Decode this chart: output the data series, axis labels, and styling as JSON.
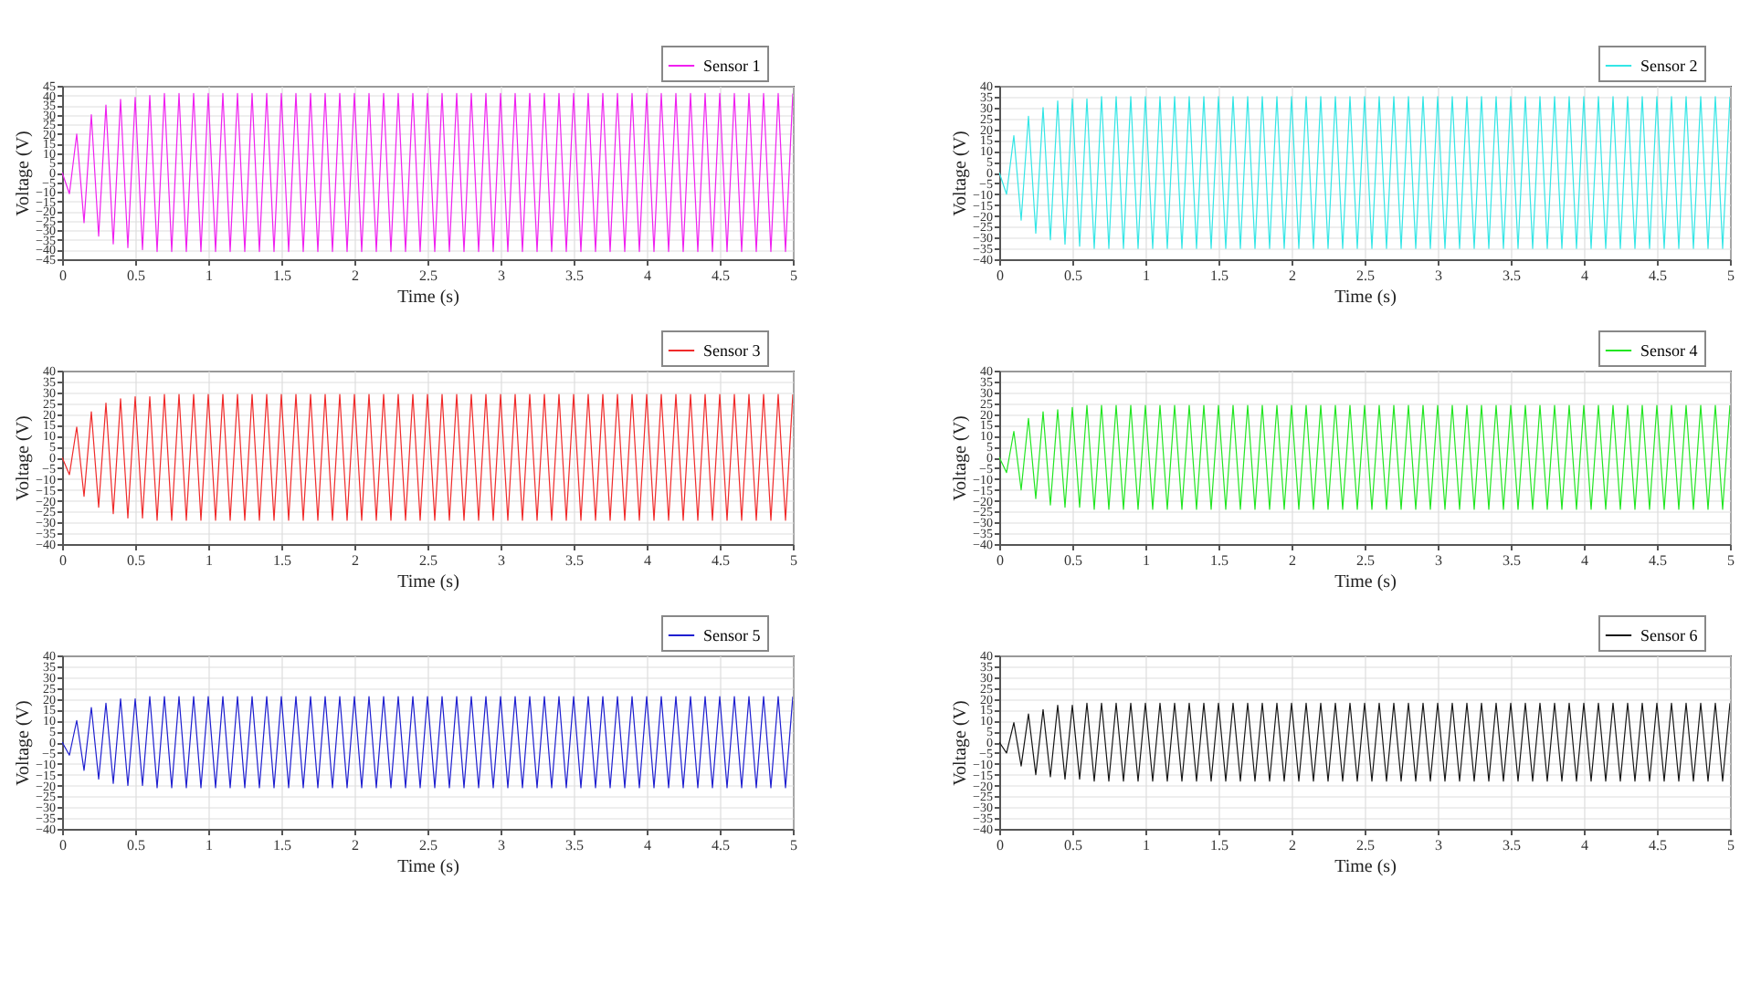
{
  "chart_data": [
    {
      "type": "line",
      "xlabel": "Time (s)",
      "ylabel": "Voltage (V)",
      "xlim": [
        0,
        5
      ],
      "xticks": [
        0,
        0.5,
        1,
        1.5,
        2,
        2.5,
        3,
        3.5,
        4,
        4.5,
        5
      ],
      "ylim": [
        -45,
        45
      ],
      "yticks": [
        -45,
        -40,
        -35,
        -30,
        -25,
        -20,
        -15,
        -10,
        -5,
        0,
        5,
        10,
        15,
        20,
        25,
        30,
        35,
        40,
        45
      ],
      "grid": true,
      "legend": "top right",
      "x": [
        0,
        0.05,
        0.1,
        0.15,
        0.2,
        0.25,
        0.3,
        0.35,
        0.4,
        0.45,
        0.5,
        0.55,
        0.6,
        0.65,
        0.7,
        0.75,
        0.8,
        0.85,
        0.9,
        0.95,
        1,
        1.05,
        1.1,
        1.15,
        1.2,
        1.25,
        1.3,
        1.35,
        1.4,
        1.45,
        1.5,
        1.55,
        1.6,
        1.65,
        1.7,
        1.75,
        1.8,
        1.85,
        1.9,
        1.95,
        2,
        2.05,
        2.1,
        2.15,
        2.2,
        2.25,
        2.3,
        2.35,
        2.4,
        2.45,
        2.5,
        2.55,
        2.6,
        2.65,
        2.7,
        2.75,
        2.8,
        2.85,
        2.9,
        2.95,
        3,
        3.05,
        3.1,
        3.15,
        3.2,
        3.25,
        3.3,
        3.35,
        3.4,
        3.45,
        3.5,
        3.55,
        3.6,
        3.65,
        3.7,
        3.75,
        3.8,
        3.85,
        3.9,
        3.95,
        4,
        4.05,
        4.1,
        4.15,
        4.2,
        4.25,
        4.3,
        4.35,
        4.4,
        4.45,
        4.5,
        4.55,
        4.6,
        4.65,
        4.7,
        4.75,
        4.8,
        4.85,
        4.9,
        4.95,
        5
      ],
      "series": [
        {
          "name": "Sensor 1",
          "color": "#f020f0",
          "values": [
            0,
            -11,
            20,
            -26,
            30,
            -33,
            35,
            -37,
            38,
            -39,
            39,
            -40,
            40,
            -41,
            41,
            -41,
            41,
            -41,
            41,
            -41,
            41,
            -41,
            41,
            -41,
            41,
            -41,
            41,
            -41,
            41,
            -41,
            41,
            -41,
            41,
            -41,
            41,
            -41,
            41,
            -41,
            41,
            -41,
            41,
            -41,
            41,
            -41,
            41,
            -41,
            41,
            -41,
            41,
            -41,
            41,
            -41,
            41,
            -41,
            41,
            -41,
            41,
            -41,
            41,
            -41,
            41,
            -41,
            41,
            -41,
            41,
            -41,
            41,
            -41,
            41,
            -41,
            41,
            -41,
            41,
            -41,
            41,
            -41,
            41,
            -41,
            41,
            -41,
            41,
            -41,
            41,
            -41,
            41,
            -41,
            41,
            -41,
            41,
            -41,
            41,
            -41,
            41,
            -41,
            41,
            -41,
            41,
            -41,
            41,
            -41,
            41
          ]
        }
      ]
    },
    {
      "type": "line",
      "xlabel": "Time (s)",
      "ylabel": "Voltage (V)",
      "xlim": [
        0,
        5
      ],
      "xticks": [
        0,
        0.5,
        1,
        1.5,
        2,
        2.5,
        3,
        3.5,
        4,
        4.5,
        5
      ],
      "ylim": [
        -40,
        40
      ],
      "yticks": [
        -40,
        -35,
        -30,
        -25,
        -20,
        -15,
        -10,
        -5,
        0,
        5,
        10,
        15,
        20,
        25,
        30,
        35,
        40
      ],
      "grid": true,
      "legend": "top right",
      "x": [
        0,
        0.05,
        0.1,
        0.15,
        0.2,
        0.25,
        0.3,
        0.35,
        0.4,
        0.45,
        0.5,
        0.55,
        0.6,
        0.65,
        0.7,
        0.75,
        0.8,
        0.85,
        0.9,
        0.95,
        1,
        1.05,
        1.1,
        1.15,
        1.2,
        1.25,
        1.3,
        1.35,
        1.4,
        1.45,
        1.5,
        1.55,
        1.6,
        1.65,
        1.7,
        1.75,
        1.8,
        1.85,
        1.9,
        1.95,
        2,
        2.05,
        2.1,
        2.15,
        2.2,
        2.25,
        2.3,
        2.35,
        2.4,
        2.45,
        2.5,
        2.55,
        2.6,
        2.65,
        2.7,
        2.75,
        2.8,
        2.85,
        2.9,
        2.95,
        3,
        3.05,
        3.1,
        3.15,
        3.2,
        3.25,
        3.3,
        3.35,
        3.4,
        3.45,
        3.5,
        3.55,
        3.6,
        3.65,
        3.7,
        3.75,
        3.8,
        3.85,
        3.9,
        3.95,
        4,
        4.05,
        4.1,
        4.15,
        4.2,
        4.25,
        4.3,
        4.35,
        4.4,
        4.45,
        4.5,
        4.55,
        4.6,
        4.65,
        4.7,
        4.75,
        4.8,
        4.85,
        4.9,
        4.95,
        5
      ],
      "series": [
        {
          "name": "Sensor 2",
          "color": "#33e6e6",
          "values": [
            0,
            -10,
            17,
            -22,
            26,
            -28,
            30,
            -31,
            33,
            -33,
            34,
            -34,
            34,
            -35,
            35,
            -35,
            35,
            -35,
            35,
            -35,
            35,
            -35,
            35,
            -35,
            35,
            -35,
            35,
            -35,
            35,
            -35,
            35,
            -35,
            35,
            -35,
            35,
            -35,
            35,
            -35,
            35,
            -35,
            35,
            -35,
            35,
            -35,
            35,
            -35,
            35,
            -35,
            35,
            -35,
            35,
            -35,
            35,
            -35,
            35,
            -35,
            35,
            -35,
            35,
            -35,
            35,
            -35,
            35,
            -35,
            35,
            -35,
            35,
            -35,
            35,
            -35,
            35,
            -35,
            35,
            -35,
            35,
            -35,
            35,
            -35,
            35,
            -35,
            35,
            -35,
            35,
            -35,
            35,
            -35,
            35,
            -35,
            35,
            -35,
            35,
            -35,
            35,
            -35,
            35,
            -35,
            35,
            -35,
            35,
            -35,
            35
          ]
        }
      ]
    },
    {
      "type": "line",
      "xlabel": "Time (s)",
      "ylabel": "Voltage (V)",
      "xlim": [
        0,
        5
      ],
      "xticks": [
        0,
        0.5,
        1,
        1.5,
        2,
        2.5,
        3,
        3.5,
        4,
        4.5,
        5
      ],
      "ylim": [
        -40,
        40
      ],
      "yticks": [
        -40,
        -35,
        -30,
        -25,
        -20,
        -15,
        -10,
        -5,
        0,
        5,
        10,
        15,
        20,
        25,
        30,
        35,
        40
      ],
      "grid": true,
      "legend": "top right",
      "x": [
        0,
        0.05,
        0.1,
        0.15,
        0.2,
        0.25,
        0.3,
        0.35,
        0.4,
        0.45,
        0.5,
        0.55,
        0.6,
        0.65,
        0.7,
        0.75,
        0.8,
        0.85,
        0.9,
        0.95,
        1,
        1.05,
        1.1,
        1.15,
        1.2,
        1.25,
        1.3,
        1.35,
        1.4,
        1.45,
        1.5,
        1.55,
        1.6,
        1.65,
        1.7,
        1.75,
        1.8,
        1.85,
        1.9,
        1.95,
        2,
        2.05,
        2.1,
        2.15,
        2.2,
        2.25,
        2.3,
        2.35,
        2.4,
        2.45,
        2.5,
        2.55,
        2.6,
        2.65,
        2.7,
        2.75,
        2.8,
        2.85,
        2.9,
        2.95,
        3,
        3.05,
        3.1,
        3.15,
        3.2,
        3.25,
        3.3,
        3.35,
        3.4,
        3.45,
        3.5,
        3.55,
        3.6,
        3.65,
        3.7,
        3.75,
        3.8,
        3.85,
        3.9,
        3.95,
        4,
        4.05,
        4.1,
        4.15,
        4.2,
        4.25,
        4.3,
        4.35,
        4.4,
        4.45,
        4.5,
        4.55,
        4.6,
        4.65,
        4.7,
        4.75,
        4.8,
        4.85,
        4.9,
        4.95,
        5
      ],
      "series": [
        {
          "name": "Sensor 3",
          "color": "#f02a2a",
          "values": [
            0,
            -8,
            14,
            -18,
            21,
            -23,
            25,
            -26,
            27,
            -28,
            28,
            -28,
            28,
            -29,
            29,
            -29,
            29,
            -29,
            29,
            -29,
            29,
            -29,
            29,
            -29,
            29,
            -29,
            29,
            -29,
            29,
            -29,
            29,
            -29,
            29,
            -29,
            29,
            -29,
            29,
            -29,
            29,
            -29,
            29,
            -29,
            29,
            -29,
            29,
            -29,
            29,
            -29,
            29,
            -29,
            29,
            -29,
            29,
            -29,
            29,
            -29,
            29,
            -29,
            29,
            -29,
            29,
            -29,
            29,
            -29,
            29,
            -29,
            29,
            -29,
            29,
            -29,
            29,
            -29,
            29,
            -29,
            29,
            -29,
            29,
            -29,
            29,
            -29,
            29,
            -29,
            29,
            -29,
            29,
            -29,
            29,
            -29,
            29,
            -29,
            29,
            -29,
            29,
            -29,
            29,
            -29,
            29,
            -29,
            29,
            -29,
            29
          ]
        }
      ]
    },
    {
      "type": "line",
      "xlabel": "Time (s)",
      "ylabel": "Voltage (V)",
      "xlim": [
        0,
        5
      ],
      "xticks": [
        0,
        0.5,
        1,
        1.5,
        2,
        2.5,
        3,
        3.5,
        4,
        4.5,
        5
      ],
      "ylim": [
        -40,
        40
      ],
      "yticks": [
        -40,
        -35,
        -30,
        -25,
        -20,
        -15,
        -10,
        -5,
        0,
        5,
        10,
        15,
        20,
        25,
        30,
        35,
        40
      ],
      "grid": true,
      "legend": "top right",
      "x": [
        0,
        0.05,
        0.1,
        0.15,
        0.2,
        0.25,
        0.3,
        0.35,
        0.4,
        0.45,
        0.5,
        0.55,
        0.6,
        0.65,
        0.7,
        0.75,
        0.8,
        0.85,
        0.9,
        0.95,
        1,
        1.05,
        1.1,
        1.15,
        1.2,
        1.25,
        1.3,
        1.35,
        1.4,
        1.45,
        1.5,
        1.55,
        1.6,
        1.65,
        1.7,
        1.75,
        1.8,
        1.85,
        1.9,
        1.95,
        2,
        2.05,
        2.1,
        2.15,
        2.2,
        2.25,
        2.3,
        2.35,
        2.4,
        2.45,
        2.5,
        2.55,
        2.6,
        2.65,
        2.7,
        2.75,
        2.8,
        2.85,
        2.9,
        2.95,
        3,
        3.05,
        3.1,
        3.15,
        3.2,
        3.25,
        3.3,
        3.35,
        3.4,
        3.45,
        3.5,
        3.55,
        3.6,
        3.65,
        3.7,
        3.75,
        3.8,
        3.85,
        3.9,
        3.95,
        4,
        4.05,
        4.1,
        4.15,
        4.2,
        4.25,
        4.3,
        4.35,
        4.4,
        4.45,
        4.5,
        4.55,
        4.6,
        4.65,
        4.7,
        4.75,
        4.8,
        4.85,
        4.9,
        4.95,
        5
      ],
      "series": [
        {
          "name": "Sensor 4",
          "color": "#22e622",
          "values": [
            0,
            -7,
            12,
            -15,
            18,
            -19,
            21,
            -22,
            22,
            -23,
            23,
            -23,
            24,
            -24,
            24,
            -24,
            24,
            -24,
            24,
            -24,
            24,
            -24,
            24,
            -24,
            24,
            -24,
            24,
            -24,
            24,
            -24,
            24,
            -24,
            24,
            -24,
            24,
            -24,
            24,
            -24,
            24,
            -24,
            24,
            -24,
            24,
            -24,
            24,
            -24,
            24,
            -24,
            24,
            -24,
            24,
            -24,
            24,
            -24,
            24,
            -24,
            24,
            -24,
            24,
            -24,
            24,
            -24,
            24,
            -24,
            24,
            -24,
            24,
            -24,
            24,
            -24,
            24,
            -24,
            24,
            -24,
            24,
            -24,
            24,
            -24,
            24,
            -24,
            24,
            -24,
            24,
            -24,
            24,
            -24,
            24,
            -24,
            24,
            -24,
            24,
            -24,
            24,
            -24,
            24,
            -24,
            24,
            -24,
            24,
            -24,
            24
          ]
        }
      ]
    },
    {
      "type": "line",
      "xlabel": "Time (s)",
      "ylabel": "Voltage (V)",
      "xlim": [
        0,
        5
      ],
      "xticks": [
        0,
        0.5,
        1,
        1.5,
        2,
        2.5,
        3,
        3.5,
        4,
        4.5,
        5
      ],
      "ylim": [
        -40,
        40
      ],
      "yticks": [
        -40,
        -35,
        -30,
        -25,
        -20,
        -15,
        -10,
        -5,
        0,
        5,
        10,
        15,
        20,
        25,
        30,
        35,
        40
      ],
      "grid": true,
      "legend": "top right",
      "x": [
        0,
        0.05,
        0.1,
        0.15,
        0.2,
        0.25,
        0.3,
        0.35,
        0.4,
        0.45,
        0.5,
        0.55,
        0.6,
        0.65,
        0.7,
        0.75,
        0.8,
        0.85,
        0.9,
        0.95,
        1,
        1.05,
        1.1,
        1.15,
        1.2,
        1.25,
        1.3,
        1.35,
        1.4,
        1.45,
        1.5,
        1.55,
        1.6,
        1.65,
        1.7,
        1.75,
        1.8,
        1.85,
        1.9,
        1.95,
        2,
        2.05,
        2.1,
        2.15,
        2.2,
        2.25,
        2.3,
        2.35,
        2.4,
        2.45,
        2.5,
        2.55,
        2.6,
        2.65,
        2.7,
        2.75,
        2.8,
        2.85,
        2.9,
        2.95,
        3,
        3.05,
        3.1,
        3.15,
        3.2,
        3.25,
        3.3,
        3.35,
        3.4,
        3.45,
        3.5,
        3.55,
        3.6,
        3.65,
        3.7,
        3.75,
        3.8,
        3.85,
        3.9,
        3.95,
        4,
        4.05,
        4.1,
        4.15,
        4.2,
        4.25,
        4.3,
        4.35,
        4.4,
        4.45,
        4.5,
        4.55,
        4.6,
        4.65,
        4.7,
        4.75,
        4.8,
        4.85,
        4.9,
        4.95,
        5
      ],
      "series": [
        {
          "name": "Sensor 5",
          "color": "#1f1fd0",
          "values": [
            0,
            -6,
            10,
            -13,
            16,
            -17,
            18,
            -19,
            20,
            -20,
            20,
            -20,
            21,
            -21,
            21,
            -21,
            21,
            -21,
            21,
            -21,
            21,
            -21,
            21,
            -21,
            21,
            -21,
            21,
            -21,
            21,
            -21,
            21,
            -21,
            21,
            -21,
            21,
            -21,
            21,
            -21,
            21,
            -21,
            21,
            -21,
            21,
            -21,
            21,
            -21,
            21,
            -21,
            21,
            -21,
            21,
            -21,
            21,
            -21,
            21,
            -21,
            21,
            -21,
            21,
            -21,
            21,
            -21,
            21,
            -21,
            21,
            -21,
            21,
            -21,
            21,
            -21,
            21,
            -21,
            21,
            -21,
            21,
            -21,
            21,
            -21,
            21,
            -21,
            21,
            -21,
            21,
            -21,
            21,
            -21,
            21,
            -21,
            21,
            -21,
            21,
            -21,
            21,
            -21,
            21,
            -21,
            21,
            -21,
            21,
            -21,
            21
          ]
        }
      ]
    },
    {
      "type": "line",
      "xlabel": "Time (s)",
      "ylabel": "Voltage (V)",
      "xlim": [
        0,
        5
      ],
      "xticks": [
        0,
        0.5,
        1,
        1.5,
        2,
        2.5,
        3,
        3.5,
        4,
        4.5,
        5
      ],
      "ylim": [
        -40,
        40
      ],
      "yticks": [
        -40,
        -35,
        -30,
        -25,
        -20,
        -15,
        -10,
        -5,
        0,
        5,
        10,
        15,
        20,
        25,
        30,
        35,
        40
      ],
      "grid": true,
      "legend": "top right",
      "x": [
        0,
        0.05,
        0.1,
        0.15,
        0.2,
        0.25,
        0.3,
        0.35,
        0.4,
        0.45,
        0.5,
        0.55,
        0.6,
        0.65,
        0.7,
        0.75,
        0.8,
        0.85,
        0.9,
        0.95,
        1,
        1.05,
        1.1,
        1.15,
        1.2,
        1.25,
        1.3,
        1.35,
        1.4,
        1.45,
        1.5,
        1.55,
        1.6,
        1.65,
        1.7,
        1.75,
        1.8,
        1.85,
        1.9,
        1.95,
        2,
        2.05,
        2.1,
        2.15,
        2.2,
        2.25,
        2.3,
        2.35,
        2.4,
        2.45,
        2.5,
        2.55,
        2.6,
        2.65,
        2.7,
        2.75,
        2.8,
        2.85,
        2.9,
        2.95,
        3,
        3.05,
        3.1,
        3.15,
        3.2,
        3.25,
        3.3,
        3.35,
        3.4,
        3.45,
        3.5,
        3.55,
        3.6,
        3.65,
        3.7,
        3.75,
        3.8,
        3.85,
        3.9,
        3.95,
        4,
        4.05,
        4.1,
        4.15,
        4.2,
        4.25,
        4.3,
        4.35,
        4.4,
        4.45,
        4.5,
        4.55,
        4.6,
        4.65,
        4.7,
        4.75,
        4.8,
        4.85,
        4.9,
        4.95,
        5
      ],
      "series": [
        {
          "name": "Sensor 6",
          "color": "#151515",
          "values": [
            0,
            -5,
            9,
            -11,
            13,
            -15,
            15,
            -16,
            17,
            -17,
            17,
            -17,
            18,
            -18,
            18,
            -18,
            18,
            -18,
            18,
            -18,
            18,
            -18,
            18,
            -18,
            18,
            -18,
            18,
            -18,
            18,
            -18,
            18,
            -18,
            18,
            -18,
            18,
            -18,
            18,
            -18,
            18,
            -18,
            18,
            -18,
            18,
            -18,
            18,
            -18,
            18,
            -18,
            18,
            -18,
            18,
            -18,
            18,
            -18,
            18,
            -18,
            18,
            -18,
            18,
            -18,
            18,
            -18,
            18,
            -18,
            18,
            -18,
            18,
            -18,
            18,
            -18,
            18,
            -18,
            18,
            -18,
            18,
            -18,
            18,
            -18,
            18,
            -18,
            18,
            -18,
            18,
            -18,
            18,
            -18,
            18,
            -18,
            18,
            -18,
            18,
            -18,
            18,
            -18,
            18,
            -18,
            18,
            -18,
            18,
            -18,
            18
          ]
        }
      ]
    }
  ]
}
